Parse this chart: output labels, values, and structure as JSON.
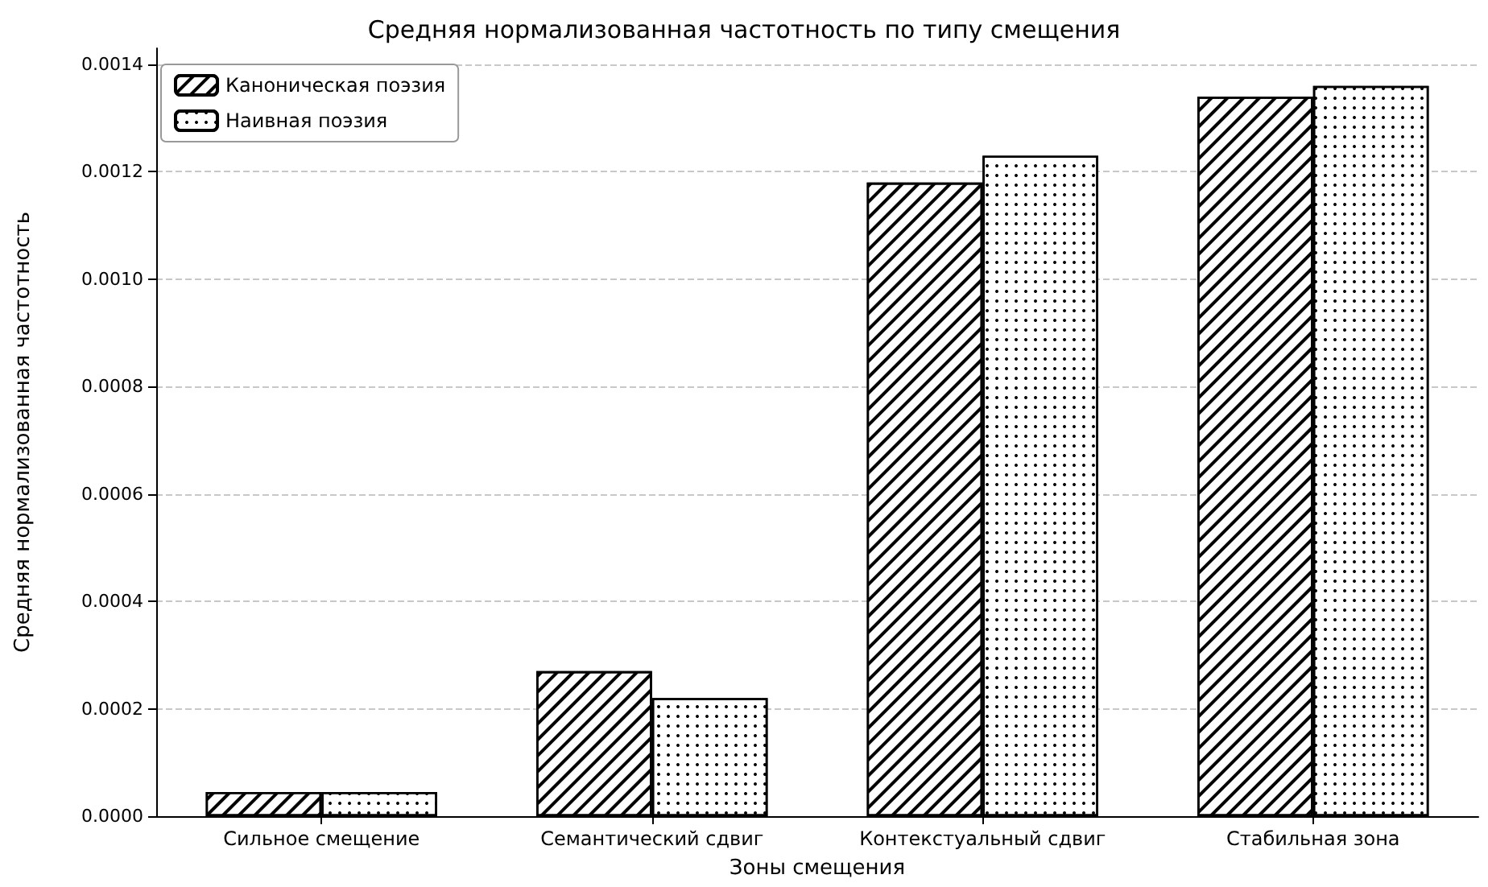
{
  "chart_data": {
    "type": "bar",
    "title": "Средняя нормализованная частотность по типу смещения",
    "xlabel": "Зоны смещения",
    "ylabel": "Средняя нормализованная частотность",
    "categories": [
      "Сильное смещение",
      "Семантический сдвиг",
      "Контекстуальный сдвиг",
      "Стабильная зона"
    ],
    "series": [
      {
        "name": "Каноническая поэзия",
        "color": "#ffffff",
        "values": [
          4.5e-05,
          0.00027,
          0.00118,
          0.00134
        ]
      },
      {
        "name": "Наивная поэзия",
        "color": "#ffffff",
        "values": [
          4.5e-05,
          0.00022,
          0.00123,
          0.00136
        ]
      }
    ],
    "ylim": [
      0,
      0.00143
    ],
    "yticks": [
      {
        "value": 0,
        "label": "0.0000"
      },
      {
        "value": 0.0002,
        "label": "0.0002"
      },
      {
        "value": 0.0004,
        "label": "0.0004"
      },
      {
        "value": 0.0006,
        "label": "0.0006"
      },
      {
        "value": 0.0008,
        "label": "0.0008"
      },
      {
        "value": 0.001,
        "label": "0.0010"
      },
      {
        "value": 0.0012,
        "label": "0.0012"
      },
      {
        "value": 0.0014,
        "label": "0.0014"
      }
    ],
    "grid": "y",
    "legend": "top left"
  }
}
